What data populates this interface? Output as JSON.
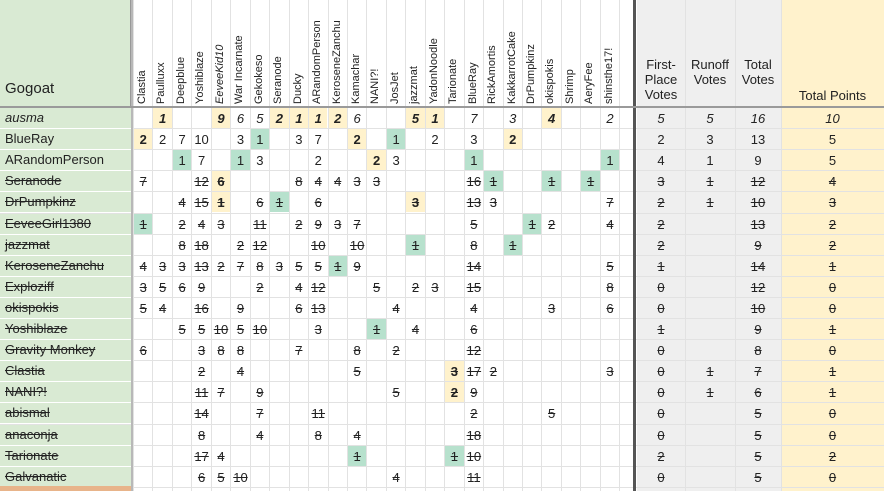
{
  "corner_label": "Gogoat",
  "voters": [
    "Clastia",
    "Paulluxx",
    "Deepblue",
    "Yoshiblaze",
    "EeveeKid10",
    "War Incarnate",
    "Gekokeso",
    "Seranode",
    "Ducky",
    "ARandomPerson",
    "KeroseneZanchu",
    "Kamachar",
    "NANI?!",
    "JosJet",
    "jazzmat",
    "YadonNoodle",
    "Tarionate",
    "BlueRay",
    "RickAmortis",
    "KakkarrotCake",
    "DrPumpkinz",
    "okispokis",
    "Shrimp",
    "AeryFee",
    "shinsthe17!"
  ],
  "summary_headers": [
    "First-Place Votes",
    "Runoff Votes",
    "Total Votes",
    "Total Points"
  ],
  "colors": {
    "name_bg": "#d9ead3",
    "first_place": "#fff2cc",
    "runoff": "#b7e1cd",
    "points_bg": "#fff2cc",
    "summary_bg": "#efefef"
  },
  "rows": [
    {
      "name": "ausma",
      "style": "italic",
      "ranks": [
        {
          "c": 1,
          "v": "1",
          "hl": 1
        },
        {
          "c": 4,
          "v": "9",
          "hl": 1
        },
        {
          "c": 5,
          "v": "6"
        },
        {
          "c": 6,
          "v": "5"
        },
        {
          "c": 7,
          "v": "2",
          "hl": 1
        },
        {
          "c": 8,
          "v": "1",
          "hl": 1
        },
        {
          "c": 9,
          "v": "1",
          "hl": 1
        },
        {
          "c": 10,
          "v": "2",
          "hl": 1
        },
        {
          "c": 11,
          "v": "6"
        },
        {
          "c": 14,
          "v": "5",
          "hl": 1
        },
        {
          "c": 15,
          "v": "1",
          "hl": 1
        },
        {
          "c": 17,
          "v": "7"
        },
        {
          "c": 19,
          "v": "3"
        },
        {
          "c": 21,
          "v": "4",
          "hl": 1
        },
        {
          "c": 24,
          "v": "2"
        }
      ],
      "first": "5",
      "runoff": "5",
      "total": "16",
      "points": "10"
    },
    {
      "name": "BlueRay",
      "style": "normal",
      "ranks": [
        {
          "c": 0,
          "v": "2",
          "hl": 1
        },
        {
          "c": 1,
          "v": "2"
        },
        {
          "c": 2,
          "v": "7"
        },
        {
          "c": 3,
          "v": "10"
        },
        {
          "c": 5,
          "v": "3"
        },
        {
          "c": 6,
          "v": "1",
          "hl": 2
        },
        {
          "c": 8,
          "v": "3"
        },
        {
          "c": 9,
          "v": "7"
        },
        {
          "c": 11,
          "v": "2",
          "hl": 1
        },
        {
          "c": 13,
          "v": "1",
          "hl": 2
        },
        {
          "c": 15,
          "v": "2"
        },
        {
          "c": 17,
          "v": "3"
        },
        {
          "c": 19,
          "v": "2",
          "hl": 1
        }
      ],
      "first": "2",
      "runoff": "3",
      "total": "13",
      "points": "5"
    },
    {
      "name": "ARandomPerson",
      "style": "normal",
      "ranks": [
        {
          "c": 2,
          "v": "1",
          "hl": 2
        },
        {
          "c": 3,
          "v": "7"
        },
        {
          "c": 5,
          "v": "1",
          "hl": 2
        },
        {
          "c": 6,
          "v": "3"
        },
        {
          "c": 9,
          "v": "2"
        },
        {
          "c": 12,
          "v": "2",
          "hl": 1
        },
        {
          "c": 13,
          "v": "3"
        },
        {
          "c": 17,
          "v": "1",
          "hl": 2
        },
        {
          "c": 24,
          "v": "1",
          "hl": 2
        }
      ],
      "first": "4",
      "runoff": "1",
      "total": "9",
      "points": "5"
    },
    {
      "name": "Seranode",
      "style": "strike",
      "ranks": [
        {
          "c": 0,
          "v": "7"
        },
        {
          "c": 3,
          "v": "12"
        },
        {
          "c": 4,
          "v": "6",
          "hl": 1
        },
        {
          "c": 8,
          "v": "8"
        },
        {
          "c": 9,
          "v": "4"
        },
        {
          "c": 10,
          "v": "4"
        },
        {
          "c": 11,
          "v": "3"
        },
        {
          "c": 12,
          "v": "3"
        },
        {
          "c": 17,
          "v": "16"
        },
        {
          "c": 18,
          "v": "1",
          "hl": 2
        },
        {
          "c": 21,
          "v": "1",
          "hl": 2
        },
        {
          "c": 23,
          "v": "1",
          "hl": 2
        }
      ],
      "first": "3",
      "runoff": "1",
      "total": "12",
      "points": "4"
    },
    {
      "name": "DrPumpkinz",
      "style": "strike",
      "ranks": [
        {
          "c": 2,
          "v": "4"
        },
        {
          "c": 3,
          "v": "15"
        },
        {
          "c": 4,
          "v": "1",
          "hl": 1
        },
        {
          "c": 6,
          "v": "6"
        },
        {
          "c": 7,
          "v": "1",
          "hl": 2
        },
        {
          "c": 9,
          "v": "6"
        },
        {
          "c": 14,
          "v": "3",
          "hl": 1
        },
        {
          "c": 17,
          "v": "13"
        },
        {
          "c": 18,
          "v": "3"
        },
        {
          "c": 24,
          "v": "7"
        }
      ],
      "first": "2",
      "runoff": "1",
      "total": "10",
      "points": "3"
    },
    {
      "name": "EeveeGirl1380",
      "style": "strike",
      "ranks": [
        {
          "c": 0,
          "v": "1",
          "hl": 2
        },
        {
          "c": 2,
          "v": "2"
        },
        {
          "c": 3,
          "v": "4"
        },
        {
          "c": 4,
          "v": "3"
        },
        {
          "c": 6,
          "v": "11"
        },
        {
          "c": 8,
          "v": "2"
        },
        {
          "c": 9,
          "v": "9"
        },
        {
          "c": 10,
          "v": "3"
        },
        {
          "c": 11,
          "v": "7"
        },
        {
          "c": 17,
          "v": "5"
        },
        {
          "c": 20,
          "v": "1",
          "hl": 2
        },
        {
          "c": 21,
          "v": "2"
        },
        {
          "c": 24,
          "v": "4"
        }
      ],
      "first": "2",
      "runoff": "",
      "total": "13",
      "points": "2"
    },
    {
      "name": "jazzmat",
      "style": "strike",
      "ranks": [
        {
          "c": 2,
          "v": "8"
        },
        {
          "c": 3,
          "v": "18"
        },
        {
          "c": 5,
          "v": "2"
        },
        {
          "c": 6,
          "v": "12"
        },
        {
          "c": 9,
          "v": "10"
        },
        {
          "c": 11,
          "v": "10"
        },
        {
          "c": 14,
          "v": "1",
          "hl": 2
        },
        {
          "c": 17,
          "v": "8"
        },
        {
          "c": 19,
          "v": "1",
          "hl": 2
        }
      ],
      "first": "2",
      "runoff": "",
      "total": "9",
      "points": "2"
    },
    {
      "name": "KeroseneZanchu",
      "style": "strike",
      "ranks": [
        {
          "c": 0,
          "v": "4"
        },
        {
          "c": 1,
          "v": "3"
        },
        {
          "c": 2,
          "v": "3"
        },
        {
          "c": 3,
          "v": "13"
        },
        {
          "c": 4,
          "v": "2"
        },
        {
          "c": 5,
          "v": "7"
        },
        {
          "c": 6,
          "v": "8"
        },
        {
          "c": 7,
          "v": "3"
        },
        {
          "c": 8,
          "v": "5"
        },
        {
          "c": 9,
          "v": "5"
        },
        {
          "c": 10,
          "v": "1",
          "hl": 2
        },
        {
          "c": 11,
          "v": "9"
        },
        {
          "c": 17,
          "v": "14"
        },
        {
          "c": 24,
          "v": "5"
        }
      ],
      "first": "1",
      "runoff": "",
      "total": "14",
      "points": "1"
    },
    {
      "name": "Exploziff",
      "style": "strike",
      "ranks": [
        {
          "c": 0,
          "v": "3"
        },
        {
          "c": 1,
          "v": "5"
        },
        {
          "c": 2,
          "v": "6"
        },
        {
          "c": 3,
          "v": "9"
        },
        {
          "c": 6,
          "v": "2"
        },
        {
          "c": 8,
          "v": "4"
        },
        {
          "c": 9,
          "v": "12"
        },
        {
          "c": 12,
          "v": "5"
        },
        {
          "c": 14,
          "v": "2"
        },
        {
          "c": 15,
          "v": "3"
        },
        {
          "c": 17,
          "v": "15"
        },
        {
          "c": 24,
          "v": "8"
        }
      ],
      "first": "0",
      "runoff": "",
      "total": "12",
      "points": "0"
    },
    {
      "name": "okispokis",
      "style": "strike",
      "ranks": [
        {
          "c": 0,
          "v": "5"
        },
        {
          "c": 1,
          "v": "4"
        },
        {
          "c": 3,
          "v": "16"
        },
        {
          "c": 5,
          "v": "9"
        },
        {
          "c": 8,
          "v": "6"
        },
        {
          "c": 9,
          "v": "13"
        },
        {
          "c": 13,
          "v": "4"
        },
        {
          "c": 17,
          "v": "4"
        },
        {
          "c": 21,
          "v": "3"
        },
        {
          "c": 24,
          "v": "6"
        }
      ],
      "first": "0",
      "runoff": "",
      "total": "10",
      "points": "0"
    },
    {
      "name": "Yoshiblaze",
      "style": "strike",
      "ranks": [
        {
          "c": 2,
          "v": "5"
        },
        {
          "c": 3,
          "v": "5"
        },
        {
          "c": 4,
          "v": "10"
        },
        {
          "c": 5,
          "v": "5"
        },
        {
          "c": 6,
          "v": "10"
        },
        {
          "c": 9,
          "v": "3"
        },
        {
          "c": 12,
          "v": "1",
          "hl": 2
        },
        {
          "c": 14,
          "v": "4"
        },
        {
          "c": 17,
          "v": "6"
        }
      ],
      "first": "1",
      "runoff": "",
      "total": "9",
      "points": "1"
    },
    {
      "name": "Gravity Monkey",
      "style": "strike",
      "ranks": [
        {
          "c": 0,
          "v": "6"
        },
        {
          "c": 3,
          "v": "3"
        },
        {
          "c": 4,
          "v": "8"
        },
        {
          "c": 5,
          "v": "8"
        },
        {
          "c": 8,
          "v": "7"
        },
        {
          "c": 11,
          "v": "8"
        },
        {
          "c": 13,
          "v": "2"
        },
        {
          "c": 17,
          "v": "12"
        }
      ],
      "first": "0",
      "runoff": "",
      "total": "8",
      "points": "0"
    },
    {
      "name": "Clastia",
      "style": "strike",
      "ranks": [
        {
          "c": 3,
          "v": "2"
        },
        {
          "c": 5,
          "v": "4"
        },
        {
          "c": 11,
          "v": "5"
        },
        {
          "c": 16,
          "v": "3",
          "hl": 1
        },
        {
          "c": 17,
          "v": "17"
        },
        {
          "c": 18,
          "v": "2"
        },
        {
          "c": 24,
          "v": "3"
        }
      ],
      "first": "0",
      "runoff": "1",
      "total": "7",
      "points": "1"
    },
    {
      "name": "NANI?!",
      "style": "strike",
      "ranks": [
        {
          "c": 3,
          "v": "11"
        },
        {
          "c": 4,
          "v": "7"
        },
        {
          "c": 6,
          "v": "9"
        },
        {
          "c": 13,
          "v": "5"
        },
        {
          "c": 16,
          "v": "2",
          "hl": 1
        },
        {
          "c": 17,
          "v": "9"
        }
      ],
      "first": "0",
      "runoff": "1",
      "total": "6",
      "points": "1"
    },
    {
      "name": "abismal",
      "style": "strike",
      "ranks": [
        {
          "c": 3,
          "v": "14"
        },
        {
          "c": 6,
          "v": "7"
        },
        {
          "c": 9,
          "v": "11"
        },
        {
          "c": 17,
          "v": "2"
        },
        {
          "c": 21,
          "v": "5"
        }
      ],
      "first": "0",
      "runoff": "",
      "total": "5",
      "points": "0"
    },
    {
      "name": "anaconja",
      "style": "strike",
      "ranks": [
        {
          "c": 3,
          "v": "8"
        },
        {
          "c": 6,
          "v": "4"
        },
        {
          "c": 9,
          "v": "8"
        },
        {
          "c": 11,
          "v": "4"
        },
        {
          "c": 17,
          "v": "18"
        }
      ],
      "first": "0",
      "runoff": "",
      "total": "5",
      "points": "0"
    },
    {
      "name": "Tarionate",
      "style": "strike",
      "ranks": [
        {
          "c": 3,
          "v": "17"
        },
        {
          "c": 4,
          "v": "4"
        },
        {
          "c": 11,
          "v": "1",
          "hl": 2
        },
        {
          "c": 16,
          "v": "1",
          "hl": 2
        },
        {
          "c": 17,
          "v": "10"
        }
      ],
      "first": "2",
      "runoff": "",
      "total": "5",
      "points": "2"
    },
    {
      "name": "Galvanatic",
      "style": "strike",
      "ranks": [
        {
          "c": 3,
          "v": "6"
        },
        {
          "c": 4,
          "v": "5"
        },
        {
          "c": 5,
          "v": "10"
        },
        {
          "c": 13,
          "v": "4"
        },
        {
          "c": 17,
          "v": "11"
        }
      ],
      "first": "0",
      "runoff": "",
      "total": "5",
      "points": "0"
    }
  ]
}
